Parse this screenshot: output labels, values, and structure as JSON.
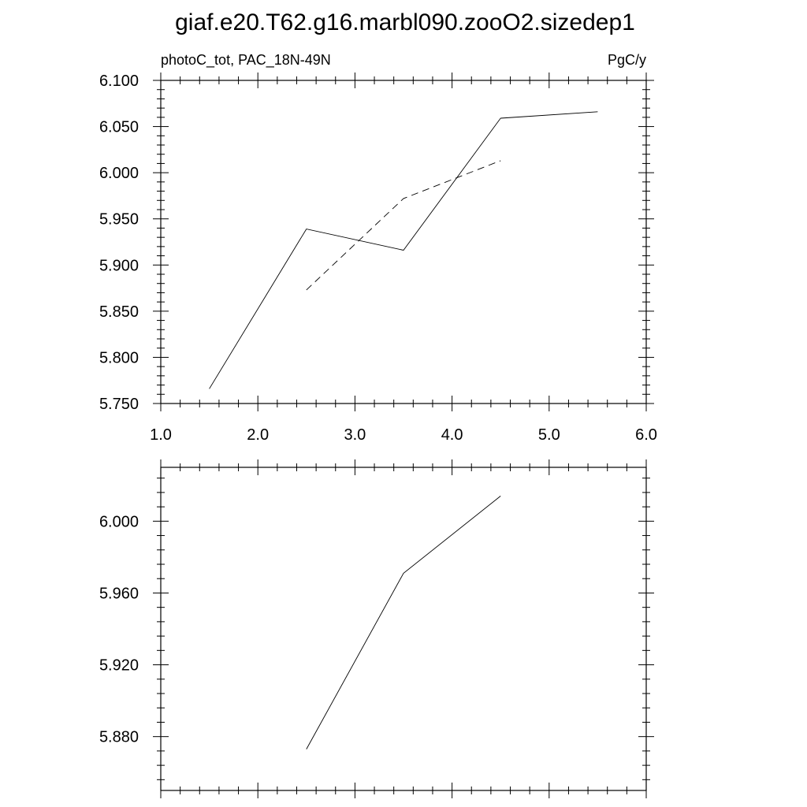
{
  "title": "giaf.e20.T62.g16.marbl090.zooO2.sizedep1",
  "chart_data": [
    {
      "type": "line",
      "left_label": "photoC_tot, PAC_18N-49N",
      "right_label": "PgC/y",
      "xlim": [
        1.0,
        6.0
      ],
      "ylim": [
        5.75,
        6.1
      ],
      "x_ticks": [
        "1.0",
        "2.0",
        "3.0",
        "4.0",
        "5.0",
        "6.0"
      ],
      "y_ticks": [
        "5.750",
        "5.800",
        "5.850",
        "5.900",
        "5.950",
        "6.000",
        "6.050",
        "6.100"
      ],
      "grid": false,
      "series": [
        {
          "style": "solid",
          "x": [
            1.5,
            2.5,
            3.5,
            4.5,
            5.5
          ],
          "y": [
            5.766,
            5.939,
            5.916,
            6.059,
            6.066
          ]
        },
        {
          "style": "dashed",
          "x": [
            2.5,
            3.5,
            4.5
          ],
          "y": [
            5.873,
            5.972,
            6.013
          ]
        }
      ]
    },
    {
      "type": "line",
      "xlim": [
        1.0,
        6.0
      ],
      "ylim": [
        5.85,
        6.03
      ],
      "x_ticks": [],
      "y_ticks": [
        "5.880",
        "5.920",
        "5.960",
        "6.000"
      ],
      "grid": false,
      "series": [
        {
          "style": "solid",
          "x": [
            2.5,
            3.5,
            4.5
          ],
          "y": [
            5.873,
            5.971,
            6.014
          ]
        }
      ]
    }
  ]
}
